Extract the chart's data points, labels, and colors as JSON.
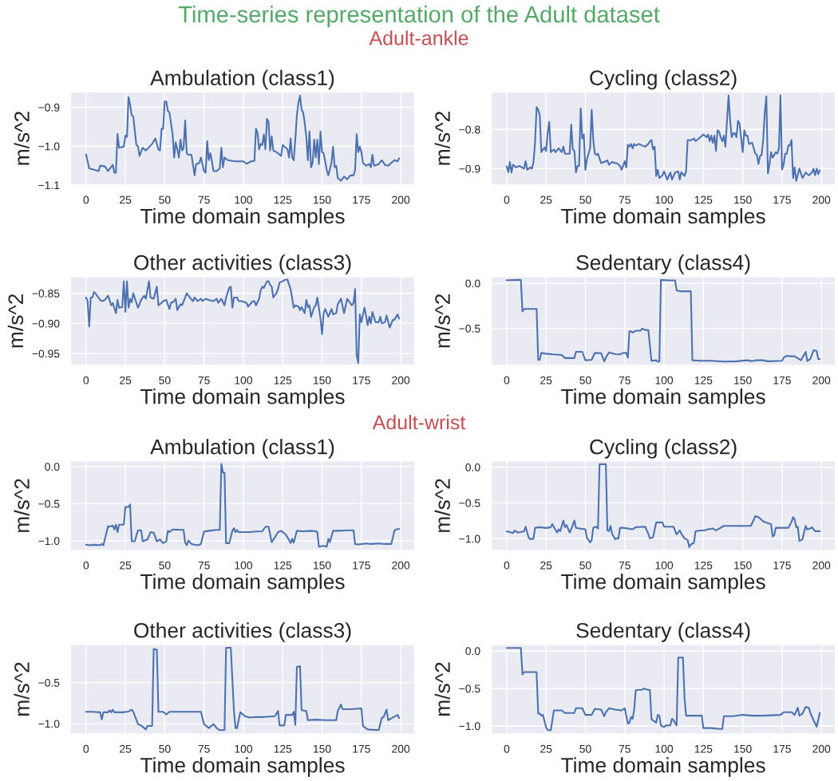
{
  "chart_data": [
    {
      "type": "line",
      "title": "Ambulation (class1)",
      "xlabel": "Time domain samples",
      "ylabel": "m/s^2",
      "annotations": [
        "Time-series representation of the Adult dataset",
        "Adult-ankle"
      ],
      "grid": true,
      "xlim": [
        -9.95,
        208.95
      ],
      "xticks": [
        0,
        25,
        50,
        75,
        100,
        125,
        150,
        175,
        200
      ],
      "ylim": [
        -1.1,
        -0.86
      ],
      "yticks": [
        {
          "value": -1.1,
          "label": "−1.1"
        },
        {
          "value": -1.0,
          "label": "−1.0"
        },
        {
          "value": -0.9,
          "label": "−0.9"
        }
      ],
      "series": [
        {
          "color": "#4c72b0",
          "x": [
            0,
            2,
            8,
            9,
            12,
            14,
            17,
            18,
            19,
            20,
            21,
            24,
            25,
            26,
            27,
            28,
            29,
            30,
            32,
            33,
            34,
            36,
            38,
            42,
            44,
            46,
            47,
            48,
            49,
            50,
            51,
            52,
            53,
            55,
            56,
            57,
            58,
            59,
            60,
            61,
            62,
            63,
            64,
            65,
            67,
            69,
            70,
            72,
            73,
            75,
            76,
            77,
            78,
            79,
            80,
            81,
            83,
            85,
            86,
            87,
            88,
            90,
            95,
            100,
            102,
            105,
            107,
            108,
            109,
            110,
            111,
            112,
            113,
            114,
            115,
            116,
            117,
            118,
            119,
            121,
            124,
            125,
            127,
            128,
            129,
            130,
            131,
            132,
            133,
            134,
            135,
            136,
            137,
            138,
            139,
            140,
            141,
            142,
            143,
            144,
            145,
            146,
            147,
            148,
            149,
            150,
            151,
            153,
            154,
            156,
            157,
            158,
            159,
            160,
            162,
            164,
            166,
            168,
            170,
            171,
            172,
            173,
            174,
            175,
            176,
            178,
            180,
            181,
            182,
            183,
            186,
            188,
            190,
            192,
            194,
            196,
            198,
            199
          ],
          "values": [
            -1.021,
            -1.057,
            -1.064,
            -1.05,
            -1.052,
            -1.064,
            -1.048,
            -1.068,
            -1.068,
            -0.969,
            -1.004,
            -1.001,
            -0.973,
            -0.976,
            -0.874,
            -0.892,
            -0.92,
            -0.923,
            -0.997,
            -1.0,
            -1.025,
            -1.004,
            -1.011,
            -0.994,
            -0.98,
            -1.008,
            -1.011,
            -0.955,
            -0.955,
            -0.885,
            -0.885,
            -0.909,
            -0.913,
            -0.969,
            -1.029,
            -0.99,
            -1.008,
            -1.029,
            -0.983,
            -1.011,
            -1.004,
            -0.934,
            -1.018,
            -1.022,
            -1.022,
            -1.075,
            -1.046,
            -1.043,
            -1.029,
            -1.064,
            -1.068,
            -0.987,
            -1.036,
            -1.018,
            -1.039,
            -1.064,
            -1.064,
            -1.057,
            -1.004,
            -1.054,
            -1.029,
            -1.036,
            -1.039,
            -1.039,
            -1.045,
            -1.039,
            -1.038,
            -0.955,
            -0.966,
            -1.008,
            -0.994,
            -0.997,
            -0.97,
            -1.008,
            -0.93,
            -0.937,
            -1.011,
            -0.975,
            -1.011,
            -1.015,
            -1.025,
            -0.997,
            -1.004,
            -1.008,
            -1.029,
            -0.98,
            -1.029,
            -1.036,
            -0.983,
            -0.92,
            -0.888,
            -0.87,
            -0.906,
            -0.913,
            -0.941,
            -0.976,
            -1.036,
            -0.962,
            -1.054,
            -1.043,
            -0.983,
            -1.029,
            -0.983,
            -1.046,
            -0.962,
            -1.015,
            -1.018,
            -1.061,
            -1.075,
            -1.043,
            -1.001,
            -1.054,
            -1.05,
            -1.082,
            -1.089,
            -1.078,
            -1.085,
            -1.075,
            -1.075,
            -1.061,
            -0.969,
            -1.015,
            -1.001,
            -1.015,
            -1.043,
            -1.05,
            -1.046,
            -1.054,
            -1.022,
            -1.05,
            -1.046,
            -1.036,
            -1.048,
            -1.05,
            -1.043,
            -1.036,
            -1.039,
            -1.031
          ]
        }
      ]
    },
    {
      "type": "line",
      "title": "Cycling (class2)",
      "xlabel": "Time domain samples",
      "ylabel": "m/s^2",
      "grid": true,
      "xlim": [
        -9.95,
        208.95
      ],
      "xticks": [
        0,
        25,
        50,
        75,
        100,
        125,
        150,
        175,
        200
      ],
      "ylim": [
        -0.942,
        -0.704
      ],
      "yticks": [
        {
          "value": -0.9,
          "label": "−0.9"
        },
        {
          "value": -0.8,
          "label": "−0.8"
        }
      ],
      "series": [
        {
          "color": "#4c72b0",
          "x": [
            0,
            1,
            2,
            3,
            4,
            6,
            8,
            10,
            11,
            12,
            13,
            15,
            16,
            17,
            18,
            19,
            20,
            21,
            22,
            24,
            25,
            26,
            27,
            28,
            30,
            31,
            33,
            35,
            36,
            37,
            40,
            41,
            42,
            43,
            44,
            45,
            46,
            47,
            48,
            49,
            50,
            51,
            53,
            54,
            55,
            56,
            57,
            58,
            60,
            62,
            64,
            65,
            67,
            69,
            70,
            72,
            73,
            74,
            75,
            76,
            77,
            78,
            79,
            80,
            81,
            82,
            84,
            86,
            88,
            90,
            91,
            92,
            93,
            94,
            95,
            96,
            97,
            99,
            100,
            102,
            104,
            105,
            107,
            109,
            110,
            111,
            113,
            114,
            115,
            117,
            119,
            120,
            123,
            125,
            127,
            128,
            129,
            130,
            131,
            132,
            133,
            134,
            135,
            136,
            137,
            138,
            139,
            140,
            141,
            142,
            143,
            144,
            145,
            146,
            147,
            148,
            149,
            150,
            151,
            152,
            153,
            154,
            156,
            157,
            158,
            159,
            160,
            161,
            162,
            163,
            164,
            165,
            166,
            167,
            168,
            169,
            170,
            171,
            172,
            173,
            174,
            175,
            176,
            177,
            178,
            179,
            180,
            181,
            182,
            183,
            184,
            186,
            188,
            190,
            192,
            194,
            195,
            196,
            197,
            198,
            199
          ],
          "values": [
            -0.894,
            -0.909,
            -0.883,
            -0.91,
            -0.89,
            -0.897,
            -0.893,
            -0.898,
            -0.9,
            -0.881,
            -0.903,
            -0.897,
            -0.9,
            -0.884,
            -0.834,
            -0.743,
            -0.75,
            -0.764,
            -0.858,
            -0.846,
            -0.855,
            -0.809,
            -0.781,
            -0.858,
            -0.851,
            -0.858,
            -0.848,
            -0.858,
            -0.844,
            -0.862,
            -0.862,
            -0.788,
            -0.851,
            -0.855,
            -0.91,
            -0.893,
            -0.893,
            -0.746,
            -0.823,
            -0.813,
            -0.903,
            -0.876,
            -0.848,
            -0.75,
            -0.827,
            -0.862,
            -0.865,
            -0.862,
            -0.886,
            -0.883,
            -0.879,
            -0.89,
            -0.883,
            -0.886,
            -0.886,
            -0.893,
            -0.903,
            -0.893,
            -0.881,
            -0.897,
            -0.839,
            -0.844,
            -0.837,
            -0.848,
            -0.837,
            -0.841,
            -0.837,
            -0.841,
            -0.844,
            -0.837,
            -0.83,
            -0.827,
            -0.851,
            -0.844,
            -0.919,
            -0.903,
            -0.924,
            -0.917,
            -0.907,
            -0.928,
            -0.91,
            -0.928,
            -0.91,
            -0.907,
            -0.928,
            -0.909,
            -0.919,
            -0.907,
            -0.827,
            -0.828,
            -0.823,
            -0.83,
            -0.82,
            -0.813,
            -0.82,
            -0.813,
            -0.83,
            -0.816,
            -0.834,
            -0.816,
            -0.855,
            -0.802,
            -0.806,
            -0.82,
            -0.83,
            -0.816,
            -0.844,
            -0.778,
            -0.713,
            -0.778,
            -0.82,
            -0.81,
            -0.81,
            -0.82,
            -0.778,
            -0.785,
            -0.823,
            -0.858,
            -0.802,
            -0.816,
            -0.816,
            -0.837,
            -0.834,
            -0.848,
            -0.862,
            -0.865,
            -0.888,
            -0.868,
            -0.865,
            -0.827,
            -0.757,
            -0.716,
            -0.912,
            -0.89,
            -0.858,
            -0.872,
            -0.865,
            -0.858,
            -0.862,
            -0.848,
            -0.713,
            -0.902,
            -0.89,
            -0.862,
            -0.862,
            -0.841,
            -0.841,
            -0.827,
            -0.924,
            -0.897,
            -0.931,
            -0.9,
            -0.924,
            -0.91,
            -0.917,
            -0.91,
            -0.9,
            -0.917,
            -0.9,
            -0.914,
            -0.904
          ]
        }
      ]
    },
    {
      "type": "line",
      "title": "Other activities (class3)",
      "xlabel": "Time domain samples",
      "ylabel": "m/s^2",
      "grid": true,
      "xlim": [
        -9.95,
        208.95
      ],
      "xticks": [
        0,
        25,
        50,
        75,
        100,
        125,
        150,
        175,
        200
      ],
      "ylim": [
        -0.97,
        -0.822
      ],
      "yticks": [
        {
          "value": -0.95,
          "label": "−0.95"
        },
        {
          "value": -0.9,
          "label": "−0.90"
        },
        {
          "value": -0.85,
          "label": "−0.85"
        }
      ],
      "series": [
        {
          "color": "#4c72b0",
          "x": [
            0,
            1,
            2,
            3,
            4,
            5,
            6,
            7,
            9,
            10,
            12,
            14,
            16,
            17,
            19,
            20,
            21,
            23,
            24,
            25,
            26,
            27,
            28,
            29,
            30,
            33,
            34,
            35,
            37,
            38,
            40,
            41,
            43,
            45,
            46,
            48,
            49,
            51,
            53,
            54,
            56,
            57,
            58,
            60,
            61,
            63,
            64,
            66,
            68,
            69,
            71,
            73,
            74,
            76,
            78,
            81,
            83,
            84,
            86,
            88,
            89,
            91,
            92,
            93,
            94,
            96,
            97,
            99,
            102,
            103,
            105,
            106,
            107,
            108,
            110,
            111,
            112,
            113,
            115,
            116,
            117,
            118,
            119,
            121,
            122,
            123,
            125,
            126,
            128,
            130,
            132,
            133,
            135,
            136,
            137,
            139,
            140,
            141,
            142,
            143,
            145,
            146,
            147,
            149,
            150,
            151,
            152,
            154,
            156,
            157,
            159,
            160,
            162,
            164,
            166,
            167,
            169,
            170,
            171,
            172,
            173,
            174,
            175,
            176,
            177,
            179,
            180,
            181,
            182,
            184,
            186,
            187,
            188,
            190,
            191,
            193,
            195,
            196,
            198,
            199
          ],
          "values": [
            -0.857,
            -0.863,
            -0.905,
            -0.857,
            -0.857,
            -0.848,
            -0.85,
            -0.854,
            -0.861,
            -0.863,
            -0.861,
            -0.854,
            -0.87,
            -0.866,
            -0.883,
            -0.861,
            -0.874,
            -0.873,
            -0.83,
            -0.881,
            -0.83,
            -0.874,
            -0.859,
            -0.865,
            -0.85,
            -0.874,
            -0.868,
            -0.861,
            -0.854,
            -0.859,
            -0.83,
            -0.857,
            -0.859,
            -0.839,
            -0.87,
            -0.866,
            -0.863,
            -0.861,
            -0.876,
            -0.866,
            -0.863,
            -0.859,
            -0.878,
            -0.868,
            -0.87,
            -0.857,
            -0.85,
            -0.857,
            -0.863,
            -0.857,
            -0.863,
            -0.859,
            -0.863,
            -0.859,
            -0.861,
            -0.863,
            -0.859,
            -0.866,
            -0.859,
            -0.87,
            -0.857,
            -0.841,
            -0.839,
            -0.874,
            -0.857,
            -0.857,
            -0.863,
            -0.863,
            -0.866,
            -0.872,
            -0.866,
            -0.863,
            -0.863,
            -0.87,
            -0.859,
            -0.845,
            -0.839,
            -0.841,
            -0.83,
            -0.83,
            -0.836,
            -0.839,
            -0.857,
            -0.85,
            -0.843,
            -0.832,
            -0.83,
            -0.828,
            -0.827,
            -0.843,
            -0.874,
            -0.87,
            -0.872,
            -0.878,
            -0.873,
            -0.883,
            -0.861,
            -0.873,
            -0.87,
            -0.889,
            -0.873,
            -0.87,
            -0.857,
            -0.892,
            -0.918,
            -0.883,
            -0.876,
            -0.889,
            -0.876,
            -0.885,
            -0.883,
            -0.868,
            -0.859,
            -0.883,
            -0.859,
            -0.863,
            -0.87,
            -0.866,
            -0.843,
            -0.953,
            -0.966,
            -0.885,
            -0.898,
            -0.885,
            -0.874,
            -0.903,
            -0.889,
            -0.9,
            -0.881,
            -0.898,
            -0.898,
            -0.889,
            -0.9,
            -0.898,
            -0.887,
            -0.907,
            -0.894,
            -0.894,
            -0.885,
            -0.892
          ]
        }
      ]
    },
    {
      "type": "line",
      "title": "Sedentary (class4)",
      "xlabel": "Time domain samples",
      "ylabel": "m/s^2",
      "grid": true,
      "xlim": [
        -9.95,
        208.95
      ],
      "xticks": [
        0,
        25,
        50,
        75,
        100,
        125,
        150,
        175,
        200
      ],
      "ylim": [
        -0.912,
        0.076
      ],
      "yticks": [
        {
          "value": -0.5,
          "label": "−0.5"
        },
        {
          "value": 0.0,
          "label": "0.0"
        }
      ],
      "series": [
        {
          "color": "#4c72b0",
          "x": [
            0,
            8,
            9,
            10,
            11,
            13,
            19,
            20,
            21,
            22,
            25,
            30,
            35,
            37,
            43,
            44,
            48,
            50,
            54,
            56,
            60,
            62,
            63,
            65,
            69,
            72,
            74,
            76,
            77,
            78,
            79,
            80,
            82,
            85,
            86,
            88,
            90,
            92,
            95,
            96,
            97,
            98,
            103,
            107,
            108,
            110,
            117,
            118,
            123,
            130,
            138,
            146,
            153,
            156,
            158,
            163,
            166,
            175,
            176,
            178,
            180,
            183,
            187,
            190,
            191,
            193,
            195,
            197,
            198,
            199
          ],
          "values": [
            0.035,
            0.038,
            0.038,
            -0.313,
            -0.284,
            -0.284,
            -0.284,
            -0.848,
            -0.848,
            -0.772,
            -0.781,
            -0.789,
            -0.795,
            -0.83,
            -0.83,
            -0.76,
            -0.76,
            -0.854,
            -0.848,
            -0.772,
            -0.775,
            -0.868,
            -0.825,
            -0.766,
            -0.787,
            -0.789,
            -0.772,
            -0.772,
            -0.825,
            -0.532,
            -0.532,
            -0.547,
            -0.526,
            -0.526,
            -0.503,
            -0.518,
            -0.518,
            -0.86,
            -0.854,
            -0.868,
            -0.868,
            0.038,
            0.032,
            0.032,
            -0.079,
            -0.088,
            -0.088,
            -0.854,
            -0.86,
            -0.86,
            -0.868,
            -0.865,
            -0.854,
            -0.865,
            -0.854,
            -0.854,
            -0.865,
            -0.86,
            -0.825,
            -0.804,
            -0.81,
            -0.81,
            -0.854,
            -0.76,
            -0.863,
            -0.839,
            -0.743,
            -0.751,
            -0.839,
            -0.839
          ]
        }
      ]
    },
    {
      "type": "line",
      "title": "Ambulation (class1)",
      "xlabel": "Time domain samples",
      "ylabel": "m/s^2",
      "annotations": [
        "Adult-wrist"
      ],
      "grid": true,
      "xlim": [
        -9.95,
        208.95
      ],
      "xticks": [
        0,
        25,
        50,
        75,
        100,
        125,
        150,
        175,
        200
      ],
      "ylim": [
        -1.132,
        0.078
      ],
      "yticks": [
        {
          "value": -1.0,
          "label": "−1.0"
        },
        {
          "value": -0.5,
          "label": "−0.5"
        },
        {
          "value": 0.0,
          "label": "0.0"
        }
      ],
      "series": [
        {
          "color": "#4c72b0",
          "x": [
            0,
            2,
            5,
            9,
            10,
            11,
            14,
            15,
            17,
            18,
            19,
            20,
            21,
            24,
            25,
            27,
            28,
            29,
            31,
            33,
            35,
            36,
            39,
            41,
            43,
            45,
            47,
            49,
            51,
            52,
            53,
            55,
            62,
            63,
            64,
            65,
            67,
            69,
            71,
            73,
            75,
            78,
            83,
            85,
            86,
            87,
            88,
            89,
            91,
            93,
            94,
            95,
            96,
            97,
            100,
            104,
            108,
            112,
            114,
            116,
            118,
            120,
            122,
            124,
            127,
            129,
            130,
            131,
            132,
            134,
            138,
            143,
            146,
            147,
            148,
            151,
            153,
            154,
            155,
            157,
            161,
            166,
            170,
            171,
            173,
            178,
            181,
            186,
            190,
            194,
            196,
            197,
            199
          ],
          "values": [
            -1.053,
            -1.06,
            -1.053,
            -1.06,
            -1.043,
            -1.06,
            -0.804,
            -0.811,
            -0.794,
            -0.847,
            -0.783,
            -0.883,
            -0.783,
            -0.783,
            -0.544,
            -0.544,
            -0.509,
            -1.007,
            -1.007,
            -0.858,
            -0.858,
            -1.007,
            -0.982,
            -0.883,
            -0.89,
            -1.007,
            -0.982,
            -1.032,
            -1.007,
            -0.865,
            -0.883,
            -0.847,
            -0.854,
            -1.025,
            -1.06,
            -0.996,
            -1.043,
            -1.053,
            -1.06,
            -1.043,
            -0.875,
            -0.865,
            -0.854,
            -0.854,
            0.036,
            -0.082,
            -0.082,
            -1.032,
            -1.032,
            -0.865,
            -0.829,
            -0.883,
            -0.854,
            -0.883,
            -0.883,
            -0.883,
            -0.875,
            -0.872,
            -0.811,
            -0.811,
            -1.018,
            -0.954,
            -0.883,
            -0.865,
            -0.918,
            -0.989,
            -1.032,
            -0.972,
            -1.025,
            -0.865,
            -0.872,
            -0.865,
            -0.872,
            -0.883,
            -1.078,
            -1.068,
            -1.078,
            -0.972,
            -1.018,
            -0.865,
            -0.865,
            -0.858,
            -0.858,
            -1.043,
            -1.05,
            -1.036,
            -1.043,
            -1.036,
            -1.043,
            -1.043,
            -0.865,
            -0.847,
            -0.84
          ]
        }
      ]
    },
    {
      "type": "line",
      "title": "Cycling (class2)",
      "xlabel": "Time domain samples",
      "ylabel": "m/s^2",
      "grid": true,
      "xlim": [
        -9.95,
        208.95
      ],
      "xticks": [
        0,
        25,
        50,
        75,
        100,
        125,
        150,
        175,
        200
      ],
      "ylim": [
        -1.167,
        0.089
      ],
      "yticks": [
        {
          "value": -1.0,
          "label": "−1.0"
        },
        {
          "value": -0.5,
          "label": "−0.5"
        },
        {
          "value": 0.0,
          "label": "0.0"
        }
      ],
      "series": [
        {
          "color": "#4c72b0",
          "x": [
            0,
            2,
            4,
            5,
            7,
            10,
            11,
            12,
            14,
            15,
            17,
            18,
            21,
            25,
            28,
            29,
            30,
            32,
            33,
            34,
            36,
            37,
            38,
            40,
            41,
            43,
            44,
            46,
            50,
            51,
            53,
            54,
            55,
            57,
            58,
            59,
            63,
            64,
            65,
            66,
            67,
            69,
            70,
            71,
            72,
            74,
            80,
            82,
            88,
            90,
            91,
            93,
            95,
            99,
            100,
            106,
            108,
            110,
            111,
            113,
            115,
            116,
            117,
            119,
            120,
            123,
            125,
            128,
            131,
            133,
            135,
            138,
            146,
            155,
            156,
            158,
            160,
            163,
            166,
            168,
            169,
            170,
            171,
            179,
            181,
            182,
            183,
            184,
            185,
            186,
            188,
            189,
            190,
            191,
            193,
            194,
            196,
            199
          ],
          "values": [
            -0.896,
            -0.907,
            -0.922,
            -0.888,
            -0.914,
            -0.903,
            -0.896,
            -0.833,
            -0.989,
            -1.007,
            -1.0,
            -0.848,
            -0.84,
            -0.851,
            -0.84,
            -0.796,
            -0.84,
            -0.914,
            -0.87,
            -0.896,
            -0.747,
            -0.84,
            -0.81,
            -0.914,
            -0.87,
            -0.747,
            -0.848,
            -0.859,
            -0.87,
            -0.989,
            -1.052,
            -1.019,
            -0.848,
            -0.833,
            -0.859,
            0.041,
            0.041,
            -0.885,
            -0.896,
            -0.822,
            -0.933,
            -1.007,
            -0.996,
            -0.996,
            -0.848,
            -0.848,
            -0.87,
            -0.84,
            -0.833,
            -0.933,
            -0.996,
            -0.981,
            -0.773,
            -0.773,
            -0.833,
            -0.833,
            -0.941,
            -0.885,
            -0.933,
            -0.996,
            -1.019,
            -1.119,
            -1.082,
            -1.056,
            -0.896,
            -0.885,
            -0.885,
            -0.87,
            -0.859,
            -0.885,
            -0.859,
            -0.822,
            -0.822,
            -0.822,
            -0.784,
            -0.684,
            -0.699,
            -0.758,
            -0.784,
            -0.796,
            -0.97,
            -0.952,
            -0.848,
            -0.848,
            -0.766,
            -0.699,
            -0.729,
            -0.84,
            -0.833,
            -1.033,
            -1.007,
            -0.914,
            -0.822,
            -0.87,
            -0.859,
            -0.84,
            -0.896,
            -0.896
          ]
        }
      ]
    },
    {
      "type": "line",
      "title": "Other activities (class3)",
      "xlabel": "Time domain samples",
      "ylabel": "m/s^2",
      "grid": true,
      "xlim": [
        -9.95,
        208.95
      ],
      "xticks": [
        0,
        25,
        50,
        75,
        100,
        125,
        150,
        175,
        200
      ],
      "ylim": [
        -1.128,
        -0.035
      ],
      "yticks": [
        {
          "value": -1.0,
          "label": "−1.0"
        },
        {
          "value": -0.5,
          "label": "−0.5"
        }
      ],
      "series": [
        {
          "color": "#4c72b0",
          "x": [
            0,
            4,
            9,
            10,
            11,
            14,
            15,
            16,
            17,
            18,
            23,
            27,
            29,
            30,
            33,
            35,
            38,
            39,
            42,
            43,
            45,
            46,
            49,
            51,
            53,
            60,
            67,
            73,
            75,
            78,
            81,
            83,
            85,
            88,
            89,
            92,
            94,
            95,
            96,
            98,
            101,
            104,
            108,
            113,
            120,
            122,
            123,
            126,
            127,
            131,
            132,
            133,
            134,
            136,
            137,
            140,
            141,
            146,
            153,
            159,
            160,
            162,
            163,
            168,
            175,
            176,
            179,
            186,
            188,
            189,
            191,
            192,
            195,
            198,
            199
          ],
          "values": [
            -0.856,
            -0.856,
            -0.862,
            -0.949,
            -0.862,
            -0.862,
            -0.837,
            -0.862,
            -0.83,
            -0.862,
            -0.862,
            -0.853,
            -0.83,
            -0.856,
            -1.006,
            -1.022,
            -1.071,
            -1.029,
            -1.029,
            -0.093,
            -0.099,
            -0.856,
            -0.856,
            -0.888,
            -0.856,
            -0.856,
            -0.856,
            -0.856,
            -1.006,
            -1.054,
            -1.006,
            -1.054,
            -1.08,
            -1.08,
            -0.077,
            -0.077,
            -0.846,
            -1.054,
            -1.054,
            -0.862,
            -0.91,
            -0.926,
            -0.92,
            -0.92,
            -0.91,
            -0.846,
            -1.022,
            -1.022,
            -0.894,
            -0.894,
            -0.856,
            -1.016,
            -0.311,
            -0.301,
            -0.837,
            -0.846,
            -0.958,
            -0.952,
            -0.958,
            -0.958,
            -0.846,
            -0.766,
            -0.824,
            -0.824,
            -0.814,
            -1.029,
            -1.071,
            -1.08,
            -0.926,
            -0.926,
            -0.83,
            -0.958,
            -0.926,
            -0.894,
            -0.933
          ]
        }
      ]
    },
    {
      "type": "line",
      "title": "Sedentary (class4)",
      "xlabel": "Time domain samples",
      "ylabel": "m/s^2",
      "grid": true,
      "xlim": [
        -9.95,
        208.95
      ],
      "xticks": [
        0,
        25,
        50,
        75,
        100,
        125,
        150,
        175,
        200
      ],
      "ylim": [
        -1.109,
        0.088
      ],
      "yticks": [
        {
          "value": -1.0,
          "label": "−1.0"
        },
        {
          "value": -0.5,
          "label": "−0.5"
        },
        {
          "value": 0.0,
          "label": "0.0"
        }
      ],
      "series": [
        {
          "color": "#4c72b0",
          "x": [
            0,
            8,
            9,
            10,
            11,
            19,
            20,
            21,
            22,
            23,
            25,
            26,
            28,
            30,
            35,
            37,
            43,
            44,
            48,
            50,
            54,
            56,
            60,
            62,
            63,
            65,
            69,
            73,
            75,
            77,
            78,
            79,
            80,
            81,
            82,
            84,
            86,
            87,
            90,
            91,
            92,
            94,
            95,
            96,
            97,
            98,
            100,
            101,
            104,
            105,
            106,
            108,
            109,
            112,
            113,
            114,
            121,
            124,
            125,
            130,
            135,
            137,
            138,
            144,
            150,
            156,
            163,
            174,
            176,
            181,
            183,
            185,
            186,
            188,
            190,
            192,
            193,
            195,
            197,
            199
          ],
          "values": [
            0.039,
            0.039,
            0.039,
            -0.313,
            -0.282,
            -0.282,
            -0.835,
            -0.835,
            -0.863,
            -0.852,
            -1.018,
            -1.056,
            -1.056,
            -0.792,
            -0.792,
            -0.827,
            -0.827,
            -0.764,
            -0.764,
            -0.852,
            -0.852,
            -0.771,
            -0.782,
            -0.87,
            -0.817,
            -0.764,
            -0.782,
            -0.792,
            -0.764,
            -0.968,
            -0.958,
            -0.877,
            -0.905,
            -0.782,
            -0.525,
            -0.518,
            -0.518,
            -0.5,
            -0.518,
            -0.518,
            -0.912,
            -0.94,
            -0.958,
            -0.852,
            -0.863,
            -0.993,
            -1.018,
            -0.993,
            -0.993,
            -0.905,
            -0.923,
            -0.993,
            -0.088,
            -0.088,
            -0.623,
            -0.863,
            -0.863,
            -0.863,
            -1.028,
            -1.028,
            -1.039,
            -1.039,
            -0.87,
            -0.87,
            -0.852,
            -0.863,
            -0.863,
            -0.852,
            -0.817,
            -0.817,
            -0.852,
            -0.757,
            -0.863,
            -0.835,
            -0.746,
            -0.757,
            -0.827,
            -0.923,
            -1.011,
            -0.827
          ]
        }
      ]
    }
  ]
}
